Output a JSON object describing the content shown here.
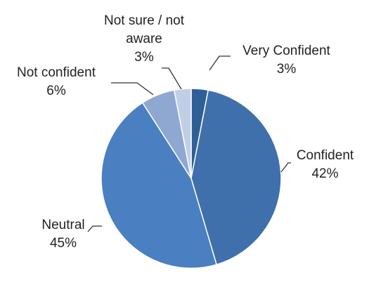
{
  "chart_data": {
    "type": "pie",
    "categories": [
      "Very Confident",
      "Confident",
      "Neutral",
      "Not confident",
      "Not sure / not aware"
    ],
    "values": [
      3,
      42,
      45,
      6,
      3
    ],
    "value_labels": [
      "3%",
      "42%",
      "45%",
      "6%",
      "3%"
    ],
    "colors": [
      "#2f5f97",
      "#3f70ab",
      "#4a7fc1",
      "#8ea8d2",
      "#c1cee7"
    ]
  }
}
